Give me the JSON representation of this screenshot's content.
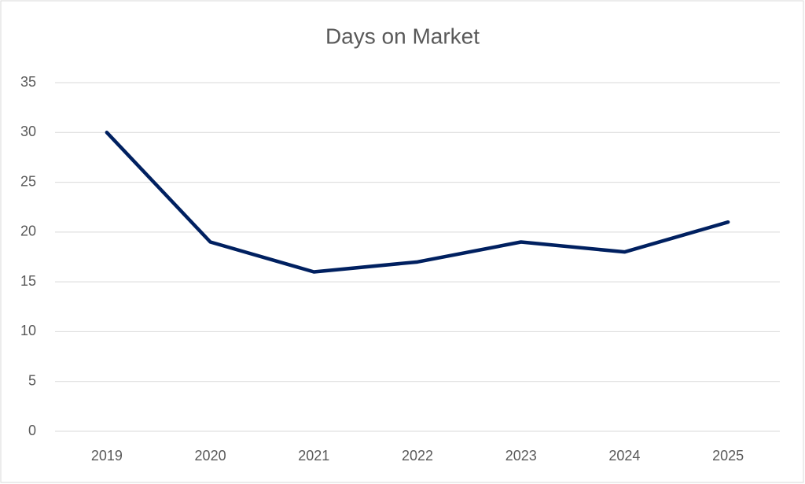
{
  "chart_data": {
    "type": "line",
    "title": "Days on Market",
    "categories": [
      "2019",
      "2020",
      "2021",
      "2022",
      "2023",
      "2024",
      "2025"
    ],
    "values": [
      30,
      19,
      16,
      17,
      19,
      18,
      21
    ],
    "color": "#002060",
    "ylim": [
      0,
      35
    ],
    "yticks": [
      0,
      5,
      10,
      15,
      20,
      25,
      30,
      35
    ],
    "grid": true
  }
}
